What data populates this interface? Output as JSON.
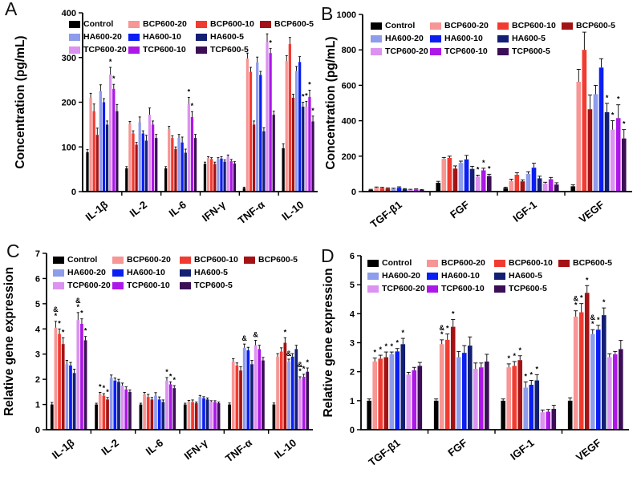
{
  "chart_data": {
    "type": "bar",
    "grid": false,
    "error_bars": "upper",
    "legend": {
      "position": "inside-top-left",
      "entries": [
        {
          "label": "Control",
          "color": "#000000"
        },
        {
          "label": "BCP600-20",
          "color": "#F69695"
        },
        {
          "label": "BCP600-10",
          "color": "#F23B30"
        },
        {
          "label": "BCP600-5",
          "color": "#A31315"
        },
        {
          "label": "HA600-20",
          "color": "#8E9CEC"
        },
        {
          "label": "HA600-10",
          "color": "#0B1FF2"
        },
        {
          "label": "HA600-5",
          "color": "#131F73"
        },
        {
          "label": "TCP600-20",
          "color": "#DC92F0"
        },
        {
          "label": "TCP600-10",
          "color": "#AD17E8"
        },
        {
          "label": "TCP600-5",
          "color": "#3B0E56"
        }
      ]
    },
    "panels": [
      {
        "label": "A",
        "ylabel": "Concentration (pg/mL)",
        "ylim": [
          0,
          400
        ],
        "yticks": [
          0,
          100,
          200,
          300,
          400
        ],
        "categories": [
          "IL-1β",
          "IL-2",
          "IL-6",
          "IFN-γ",
          "TNF-α",
          "IL-10"
        ],
        "series": [
          {
            "name": "Control",
            "values": [
              88,
              52,
              52,
              62,
              8,
              97
            ],
            "err": [
              6,
              4,
              4,
              4,
              2,
              10
            ]
          },
          {
            "name": "BCP600-20",
            "values": [
              210,
              152,
              140,
              75,
              298,
              292
            ],
            "err": [
              10,
              5,
              6,
              3,
              12,
              12
            ]
          },
          {
            "name": "BCP600-10",
            "values": [
              180,
              130,
              120,
              73,
              268,
              330
            ],
            "err": [
              16,
              6,
              5,
              3,
              10,
              15
            ]
          },
          {
            "name": "BCP600-5",
            "values": [
              127,
              105,
              95,
              62,
              150,
              210
            ],
            "err": [
              15,
              5,
              5,
              4,
              8,
              8
            ]
          },
          {
            "name": "HA600-20",
            "values": [
              225,
              155,
              120,
              72,
              289,
              270
            ],
            "err": [
              14,
              12,
              8,
              4,
              12,
              10
            ]
          },
          {
            "name": "HA600-10",
            "values": [
              200,
              130,
              110,
              74,
              261,
              290
            ],
            "err": [
              8,
              6,
              12,
              4,
              8,
              12
            ]
          },
          {
            "name": "HA600-5",
            "values": [
              150,
              114,
              87,
              67,
              135,
              190
            ],
            "err": [
              8,
              12,
              8,
              4,
              8,
              10
            ],
            "sig": [
              "",
              "",
              "",
              "",
              "",
              "*"
            ]
          },
          {
            "name": "TCP600-20",
            "values": [
              262,
              172,
              196,
              78,
              335,
              190
            ],
            "err": [
              16,
              15,
              15,
              4,
              18,
              12
            ],
            "sig": [
              "*",
              "",
              "*",
              "",
              "*",
              "*"
            ]
          },
          {
            "name": "TCP600-10",
            "values": [
              230,
              150,
              167,
              68,
              310,
              212
            ],
            "err": [
              10,
              8,
              12,
              4,
              10,
              15
            ],
            "sig": [
              "*",
              "",
              "*",
              "",
              "*",
              "*"
            ]
          },
          {
            "name": "TCP600-5",
            "values": [
              180,
              120,
              120,
              63,
              172,
              157
            ],
            "err": [
              15,
              8,
              8,
              4,
              8,
              12
            ],
            "sig": [
              "",
              "",
              "",
              "",
              "",
              "*"
            ]
          }
        ]
      },
      {
        "label": "B",
        "ylabel": "Concentration (pg/mL)",
        "ylim": [
          0,
          1000
        ],
        "yticks": [
          0,
          200,
          400,
          600,
          800,
          1000
        ],
        "categories": [
          "TGF-β1",
          "FGF",
          "IGF-1",
          "VEGF"
        ],
        "series": [
          {
            "name": "Control",
            "values": [
              10,
              50,
              20,
              30
            ],
            "err": [
              3,
              8,
              5,
              8
            ]
          },
          {
            "name": "BCP600-20",
            "values": [
              22,
              185,
              60,
              620
            ],
            "err": [
              4,
              8,
              10,
              70
            ]
          },
          {
            "name": "BCP600-10",
            "values": [
              20,
              190,
              95,
              800
            ],
            "err": [
              4,
              10,
              12,
              100
            ]
          },
          {
            "name": "BCP600-5",
            "values": [
              17,
              130,
              58,
              465
            ],
            "err": [
              4,
              15,
              8,
              80
            ]
          },
          {
            "name": "HA600-20",
            "values": [
              16,
              162,
              100,
              550
            ],
            "err": [
              3,
              10,
              12,
              50
            ]
          },
          {
            "name": "HA600-10",
            "values": [
              22,
              182,
              135,
              700
            ],
            "err": [
              5,
              22,
              25,
              50
            ]
          },
          {
            "name": "HA600-5",
            "values": [
              14,
              128,
              75,
              448
            ],
            "err": [
              3,
              15,
              12,
              50
            ],
            "sig": [
              "",
              "",
              "",
              "*"
            ]
          },
          {
            "name": "TCP600-20",
            "values": [
              10,
              85,
              45,
              350
            ],
            "err": [
              3,
              8,
              8,
              50
            ],
            "sig": [
              "",
              "*",
              "",
              "*"
            ]
          },
          {
            "name": "TCP600-10",
            "values": [
              12,
              120,
              70,
              415
            ],
            "err": [
              3,
              12,
              10,
              75
            ],
            "sig": [
              "",
              "*",
              "",
              "*"
            ]
          },
          {
            "name": "TCP600-5",
            "values": [
              9,
              88,
              40,
              300
            ],
            "err": [
              3,
              10,
              10,
              50
            ],
            "sig": [
              "",
              "*",
              "",
              "*"
            ]
          }
        ]
      },
      {
        "label": "C",
        "ylabel": "Relative gene expression",
        "ylim": [
          0,
          7
        ],
        "yticks": [
          0,
          1,
          2,
          3,
          4,
          5,
          6,
          7
        ],
        "categories": [
          "IL-1β",
          "IL-2",
          "IL-6",
          "IFN-γ",
          "TNF-α",
          "IL-10"
        ],
        "series": [
          {
            "name": "Control",
            "values": [
              1,
              1,
              1,
              1,
              1,
              1
            ],
            "err": [
              0.08,
              0.05,
              0.05,
              0.05,
              0.06,
              0.06
            ]
          },
          {
            "name": "BCP600-20",
            "values": [
              4.05,
              1.4,
              1.4,
              1.1,
              2.7,
              2.9
            ],
            "err": [
              0.25,
              0.08,
              0.08,
              0.06,
              0.12,
              0.12
            ],
            "sig": [
              "&*",
              "*",
              "",
              "",
              "",
              ""
            ]
          },
          {
            "name": "BCP600-10",
            "values": [
              3.8,
              1.35,
              1.3,
              1.1,
              2.55,
              3.1
            ],
            "err": [
              0.2,
              0.08,
              0.1,
              0.08,
              0.1,
              0.15
            ],
            "sig": [
              "*",
              "*",
              "",
              "",
              "",
              ""
            ]
          },
          {
            "name": "BCP600-5",
            "values": [
              3.4,
              1.2,
              1.2,
              1.05,
              2.35,
              3.45
            ],
            "err": [
              0.25,
              0.08,
              0.08,
              0.05,
              0.15,
              0.2
            ],
            "sig": [
              "*",
              "*",
              "",
              "",
              "",
              "*"
            ]
          },
          {
            "name": "HA600-20",
            "values": [
              2.6,
              2.05,
              1.35,
              1.3,
              3.25,
              2.7
            ],
            "err": [
              0.15,
              0.12,
              0.12,
              0.06,
              0.15,
              0.1
            ],
            "sig": [
              "",
              "",
              "",
              "",
              "&",
              "&"
            ]
          },
          {
            "name": "HA600-10",
            "values": [
              2.55,
              1.95,
              1.2,
              1.25,
              3.15,
              2.9
            ],
            "err": [
              0.12,
              0.1,
              0.1,
              0.06,
              0.12,
              0.12
            ]
          },
          {
            "name": "HA600-5",
            "values": [
              2.25,
              1.9,
              1.1,
              1.2,
              2.6,
              3.2
            ],
            "err": [
              0.15,
              0.1,
              0.08,
              0.06,
              0.15,
              0.15
            ]
          },
          {
            "name": "TCP600-20",
            "values": [
              4.35,
              1.75,
              1.95,
              1.1,
              3.35,
              2.0
            ],
            "err": [
              0.3,
              0.1,
              0.12,
              0.05,
              0.2,
              0.1
            ],
            "sig": [
              "&*",
              "",
              "*",
              "",
              "&",
              "&*"
            ]
          },
          {
            "name": "TCP600-10",
            "values": [
              4.2,
              1.6,
              1.8,
              1.1,
              3.2,
              2.1
            ],
            "err": [
              0.2,
              0.1,
              0.1,
              0.05,
              0.15,
              0.1
            ],
            "sig": [
              "*",
              "",
              "*",
              "",
              "",
              "*"
            ]
          },
          {
            "name": "TCP600-5",
            "values": [
              3.55,
              1.5,
              1.65,
              1.05,
              2.75,
              2.3
            ],
            "err": [
              0.15,
              0.08,
              0.1,
              0.05,
              0.12,
              0.15
            ],
            "sig": [
              "*",
              "",
              "*",
              "",
              "",
              "*"
            ]
          }
        ]
      },
      {
        "label": "D",
        "ylabel": "Relative gene expression",
        "ylim": [
          0,
          6
        ],
        "yticks": [
          0,
          1,
          2,
          3,
          4,
          5,
          6
        ],
        "categories": [
          "TGF-β1",
          "FGF",
          "IGF-1",
          "VEGF"
        ],
        "series": [
          {
            "name": "Control",
            "values": [
              1,
              1,
              1,
              1
            ],
            "err": [
              0.06,
              0.06,
              0.06,
              0.1
            ]
          },
          {
            "name": "BCP600-20",
            "values": [
              2.35,
              2.95,
              2.15,
              3.9
            ],
            "err": [
              0.12,
              0.15,
              0.12,
              0.2
            ],
            "sig": [
              "*",
              "&*",
              "*",
              "&*"
            ]
          },
          {
            "name": "BCP600-10",
            "values": [
              2.45,
              3.1,
              2.2,
              4.05
            ],
            "err": [
              0.12,
              0.2,
              0.15,
              0.3
            ],
            "sig": [
              "*",
              "*",
              "*",
              "*"
            ]
          },
          {
            "name": "BCP600-5",
            "values": [
              2.5,
              3.55,
              2.4,
              4.72
            ],
            "err": [
              0.18,
              0.25,
              0.15,
              0.25
            ],
            "sig": [
              "*",
              "*",
              "*",
              "*"
            ]
          },
          {
            "name": "HA600-20",
            "values": [
              2.6,
              2.5,
              1.45,
              3.3
            ],
            "err": [
              0.08,
              0.2,
              0.2,
              0.15
            ],
            "sig": [
              "*",
              "",
              "*",
              "&*"
            ]
          },
          {
            "name": "HA600-10",
            "values": [
              2.7,
              2.65,
              1.55,
              3.45
            ],
            "err": [
              0.1,
              0.25,
              0.15,
              0.15
            ],
            "sig": [
              "*",
              "",
              "*",
              "*"
            ]
          },
          {
            "name": "HA600-5",
            "values": [
              2.95,
              2.9,
              1.7,
              3.95
            ],
            "err": [
              0.2,
              0.3,
              0.2,
              0.25
            ],
            "sig": [
              "*",
              "",
              "*",
              "*"
            ]
          },
          {
            "name": "TCP600-20",
            "values": [
              1.9,
              2.1,
              0.6,
              2.5
            ],
            "err": [
              0.08,
              0.2,
              0.08,
              0.12
            ]
          },
          {
            "name": "TCP600-10",
            "values": [
              2.05,
              2.15,
              0.62,
              2.6
            ],
            "err": [
              0.1,
              0.15,
              0.08,
              0.1
            ]
          },
          {
            "name": "TCP600-5",
            "values": [
              2.2,
              2.35,
              0.72,
              2.78
            ],
            "err": [
              0.12,
              0.25,
              0.12,
              0.3
            ]
          }
        ]
      }
    ]
  }
}
